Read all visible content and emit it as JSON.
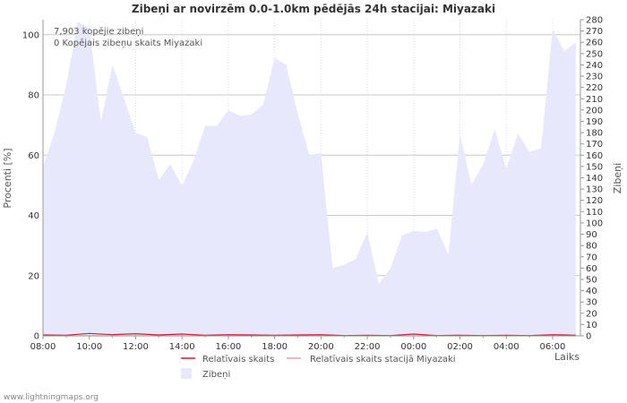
{
  "chart_data": {
    "type": "area",
    "title": "Zibeņi ar novirzēm 0.0-1.0km pēdējās 24h stacijai: Miyazaki",
    "xlabel": "Laiks",
    "ylabel_left": "Procenti   [%]",
    "ylabel_right": "Zibeņi",
    "y_left_range": [
      0,
      105
    ],
    "y_right_range": [
      0,
      280
    ],
    "y_left_ticks": [
      "0",
      "20",
      "40",
      "60",
      "80",
      "100"
    ],
    "y_right_ticks": [
      "0",
      "10",
      "20",
      "30",
      "40",
      "50",
      "60",
      "70",
      "80",
      "90",
      "100",
      "110",
      "120",
      "130",
      "140",
      "150",
      "160",
      "170",
      "180",
      "190",
      "200",
      "210",
      "220",
      "230",
      "240",
      "250",
      "260",
      "270",
      "280"
    ],
    "x_range": [
      0,
      23.2
    ],
    "x_ticks": [
      {
        "label": "08:00",
        "h": 0
      },
      {
        "label": "10:00",
        "h": 2
      },
      {
        "label": "12:00",
        "h": 4
      },
      {
        "label": "14:00",
        "h": 6
      },
      {
        "label": "16:00",
        "h": 8
      },
      {
        "label": "18:00",
        "h": 10
      },
      {
        "label": "20:00",
        "h": 12
      },
      {
        "label": "22:00",
        "h": 14
      },
      {
        "label": "00:00",
        "h": 16
      },
      {
        "label": "02:00",
        "h": 18
      },
      {
        "label": "04:00",
        "h": 20
      },
      {
        "label": "06:00",
        "h": 22
      }
    ],
    "annotations": [
      "7,903 kopējie zibeņi",
      "0 Kopējais zibeņu skaits Miyazaki"
    ],
    "series": [
      {
        "name": "Zibeņi",
        "axis": "right",
        "color": "#e8e8fc",
        "x": [
          0,
          0.5,
          1,
          1.5,
          2,
          2.5,
          3,
          3.5,
          4,
          4.5,
          5,
          5.5,
          6,
          6.5,
          7,
          7.5,
          8,
          8.5,
          9,
          9.5,
          10,
          10.5,
          11,
          11.5,
          12,
          12.5,
          13,
          13.5,
          14,
          14.5,
          15,
          15.5,
          16,
          16.5,
          17,
          17.5,
          18,
          18.5,
          19,
          19.5,
          20,
          20.5,
          21,
          21.5,
          22,
          22.5,
          23
        ],
        "values": [
          150,
          180,
          222,
          278,
          273,
          190,
          240,
          210,
          180,
          176,
          138,
          152,
          133,
          155,
          186,
          186,
          200,
          195,
          196,
          205,
          246,
          240,
          197,
          160,
          162,
          60,
          63,
          68,
          92,
          46,
          60,
          89,
          93,
          92,
          95,
          72,
          179,
          134,
          152,
          183,
          148,
          179,
          163,
          166,
          272,
          252,
          260
        ]
      },
      {
        "name": "Relatīvais skaits",
        "axis": "left",
        "color": "#cc2233",
        "x": [
          0,
          1,
          2,
          3,
          4,
          5,
          6,
          7,
          8,
          9,
          10,
          11,
          12,
          13,
          14,
          15,
          16,
          17,
          18,
          19,
          20,
          21,
          22,
          23
        ],
        "values": [
          0.3,
          0.2,
          0.8,
          0.4,
          0.7,
          0.3,
          0.6,
          0.2,
          0.4,
          0.3,
          0.2,
          0.3,
          0.4,
          0.1,
          0.2,
          0.1,
          0.6,
          0.1,
          0.2,
          0.1,
          0.2,
          0.1,
          0.4,
          0.2
        ]
      },
      {
        "name": "Relatīvais skaits stacijā Miyazaki",
        "axis": "left",
        "color": "#f0a0b0",
        "x": [
          0,
          23
        ],
        "values": [
          0,
          0
        ]
      }
    ]
  },
  "footer": {
    "credit": "www.lightningmaps.org"
  }
}
